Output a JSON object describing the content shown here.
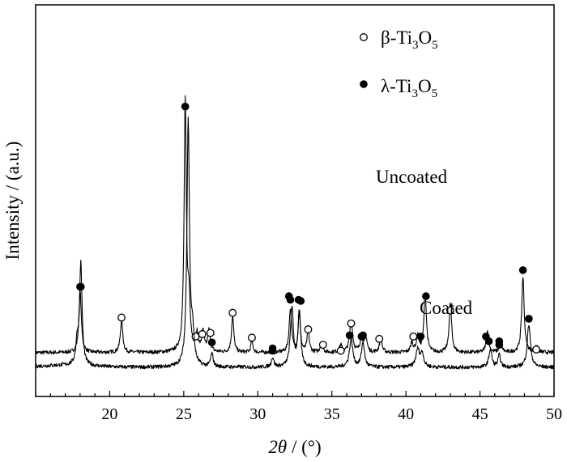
{
  "chart_data": {
    "type": "line",
    "xlabel_parts": {
      "theta": "2θ",
      "unit": " / (°)"
    },
    "ylabel": "Intensity / (a.u.)",
    "xlim": [
      15,
      50
    ],
    "xticks": [
      20,
      25,
      30,
      35,
      40,
      45,
      50
    ],
    "grid": false,
    "y_tick_labels_shown": false,
    "legend": {
      "placement": "top-right",
      "entries": [
        {
          "marker": "open-circle",
          "prefix": "β-Ti",
          "sub1": "3",
          "mid": "O",
          "sub2": "5"
        },
        {
          "marker": "filled-circle",
          "prefix": "λ-Ti",
          "sub1": "3",
          "mid": "O",
          "sub2": "5"
        }
      ]
    },
    "series": [
      {
        "name": "Uncoated",
        "baseline": 0.62,
        "peaks": [
          {
            "x": 18.0,
            "h": 2.6,
            "w": 0.1
          },
          {
            "x": 20.8,
            "h": 1.35,
            "w": 0.1
          },
          {
            "x": 25.1,
            "h": 10.5,
            "w": 0.09
          },
          {
            "x": 25.35,
            "h": 2.0,
            "w": 0.1
          },
          {
            "x": 25.9,
            "h": 0.7,
            "w": 0.1
          },
          {
            "x": 26.3,
            "h": 0.8,
            "w": 0.1
          },
          {
            "x": 26.7,
            "h": 0.9,
            "w": 0.1
          },
          {
            "x": 28.3,
            "h": 1.55,
            "w": 0.09
          },
          {
            "x": 29.6,
            "h": 0.5,
            "w": 0.08
          },
          {
            "x": 32.2,
            "h": 1.85,
            "w": 0.1
          },
          {
            "x": 32.8,
            "h": 1.7,
            "w": 0.09
          },
          {
            "x": 33.4,
            "h": 0.9,
            "w": 0.09
          },
          {
            "x": 34.3,
            "h": 0.4,
            "w": 0.1
          },
          {
            "x": 35.6,
            "h": 0.3,
            "w": 0.1
          },
          {
            "x": 36.3,
            "h": 1.3,
            "w": 0.12
          },
          {
            "x": 37.0,
            "h": 0.7,
            "w": 0.1
          },
          {
            "x": 37.3,
            "h": 0.6,
            "w": 0.1
          },
          {
            "x": 38.3,
            "h": 0.6,
            "w": 0.1
          },
          {
            "x": 40.4,
            "h": 0.4,
            "w": 0.1
          },
          {
            "x": 40.8,
            "h": 0.7,
            "w": 0.1
          },
          {
            "x": 41.3,
            "h": 2.5,
            "w": 0.1
          },
          {
            "x": 43.0,
            "h": 2.1,
            "w": 0.1
          },
          {
            "x": 45.5,
            "h": 0.9,
            "w": 0.1
          },
          {
            "x": 46.4,
            "h": 0.5,
            "w": 0.09
          },
          {
            "x": 47.9,
            "h": 3.2,
            "w": 0.1
          },
          {
            "x": 48.8,
            "h": 0.3,
            "w": 0.1
          }
        ],
        "markers": [
          {
            "x": 18.0,
            "y": 3.4,
            "type": "filled"
          },
          {
            "x": 20.8,
            "y": 2.1,
            "type": "open"
          },
          {
            "x": 25.1,
            "y": 11.0,
            "type": "filled"
          },
          {
            "x": 25.8,
            "y": 1.3,
            "type": "open"
          },
          {
            "x": 26.25,
            "y": 1.4,
            "type": "open"
          },
          {
            "x": 26.8,
            "y": 1.45,
            "type": "open"
          },
          {
            "x": 28.3,
            "y": 2.3,
            "type": "open"
          },
          {
            "x": 29.6,
            "y": 1.25,
            "type": "open"
          },
          {
            "x": 31.0,
            "y": 0.7,
            "type": "filled"
          },
          {
            "x": 32.1,
            "y": 3.0,
            "type": "filled"
          },
          {
            "x": 32.9,
            "y": 2.8,
            "type": "filled"
          },
          {
            "x": 33.4,
            "y": 1.6,
            "type": "open"
          },
          {
            "x": 34.4,
            "y": 0.95,
            "type": "open"
          },
          {
            "x": 35.6,
            "y": 0.7,
            "type": "open"
          },
          {
            "x": 36.3,
            "y": 1.85,
            "type": "open"
          },
          {
            "x": 37.0,
            "y": 1.3,
            "type": "filled"
          },
          {
            "x": 38.2,
            "y": 1.2,
            "type": "open"
          },
          {
            "x": 40.5,
            "y": 1.3,
            "type": "open"
          },
          {
            "x": 41.35,
            "y": 3.0,
            "type": "filled"
          },
          {
            "x": 43.0,
            "y": 2.4,
            "type": "open"
          },
          {
            "x": 45.4,
            "y": 1.3,
            "type": "filled"
          },
          {
            "x": 46.3,
            "y": 1.1,
            "type": "filled"
          },
          {
            "x": 47.9,
            "y": 4.1,
            "type": "filled"
          },
          {
            "x": 48.8,
            "y": 0.75,
            "type": "open"
          }
        ]
      },
      {
        "name": "Coated",
        "baseline": 0.0,
        "peaks": [
          {
            "x": 17.8,
            "h": 0.9,
            "w": 0.1
          },
          {
            "x": 18.05,
            "h": 4.3,
            "w": 0.1
          },
          {
            "x": 25.3,
            "h": 10.4,
            "w": 0.1
          },
          {
            "x": 25.6,
            "h": 1.2,
            "w": 0.12
          },
          {
            "x": 26.9,
            "h": 0.55,
            "w": 0.1
          },
          {
            "x": 31.0,
            "h": 0.4,
            "w": 0.1
          },
          {
            "x": 32.3,
            "h": 2.5,
            "w": 0.12
          },
          {
            "x": 32.8,
            "h": 2.3,
            "w": 0.11
          },
          {
            "x": 36.3,
            "h": 1.15,
            "w": 0.14
          },
          {
            "x": 37.1,
            "h": 1.05,
            "w": 0.12
          },
          {
            "x": 40.8,
            "h": 0.75,
            "w": 0.15
          },
          {
            "x": 41.1,
            "h": 0.55,
            "w": 0.12
          },
          {
            "x": 45.7,
            "h": 0.75,
            "w": 0.12
          },
          {
            "x": 46.3,
            "h": 0.5,
            "w": 0.1
          },
          {
            "x": 48.3,
            "h": 1.8,
            "w": 0.13
          }
        ],
        "markers": [
          {
            "x": 18.05,
            "y": 3.4,
            "type": "filled"
          },
          {
            "x": 26.9,
            "y": 1.05,
            "type": "filled"
          },
          {
            "x": 31.0,
            "y": 0.8,
            "type": "filled"
          },
          {
            "x": 32.2,
            "y": 2.85,
            "type": "filled"
          },
          {
            "x": 32.75,
            "y": 2.85,
            "type": "filled"
          },
          {
            "x": 36.2,
            "y": 1.35,
            "type": "filled"
          },
          {
            "x": 37.1,
            "y": 1.35,
            "type": "filled"
          },
          {
            "x": 41.0,
            "y": 1.3,
            "type": "filled"
          },
          {
            "x": 45.6,
            "y": 1.1,
            "type": "filled"
          },
          {
            "x": 46.3,
            "y": 0.95,
            "type": "filled"
          },
          {
            "x": 48.3,
            "y": 2.05,
            "type": "filled"
          }
        ]
      }
    ]
  }
}
